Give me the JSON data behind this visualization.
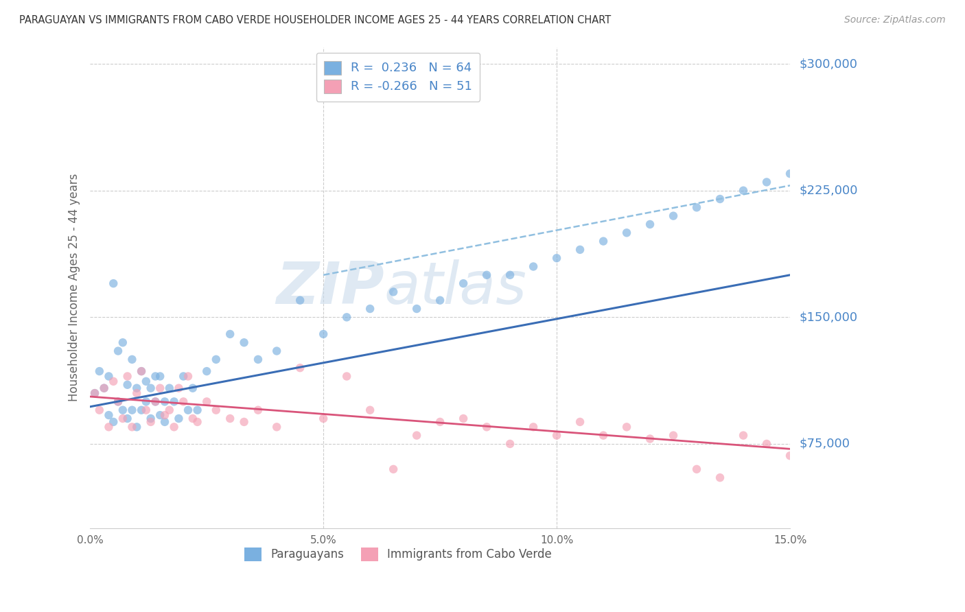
{
  "title": "PARAGUAYAN VS IMMIGRANTS FROM CABO VERDE HOUSEHOLDER INCOME AGES 25 - 44 YEARS CORRELATION CHART",
  "source": "Source: ZipAtlas.com",
  "ylabel": "Householder Income Ages 25 - 44 years",
  "xlim": [
    0.0,
    0.15
  ],
  "ylim": [
    25000,
    310000
  ],
  "yticks": [
    75000,
    150000,
    225000,
    300000
  ],
  "xticks": [
    0.0,
    0.05,
    0.1,
    0.15
  ],
  "xtick_labels": [
    "0.0%",
    "5.0%",
    "10.0%",
    "15.0%"
  ],
  "blue_color": "#7ab0e0",
  "pink_color": "#f4a0b5",
  "blue_line_color": "#3a6db5",
  "pink_line_color": "#d9547a",
  "dashed_line_color": "#90bfe0",
  "watermark_zip": "ZIP",
  "watermark_atlas": "atlas",
  "legend_r1": "R =  0.236",
  "legend_n1": "N = 64",
  "legend_r2": "R = -0.266",
  "legend_n2": "N = 51",
  "blue_label": "Paraguayans",
  "pink_label": "Immigrants from Cabo Verde",
  "blue_scatter_x": [
    0.001,
    0.002,
    0.003,
    0.004,
    0.004,
    0.005,
    0.005,
    0.006,
    0.006,
    0.007,
    0.007,
    0.008,
    0.008,
    0.009,
    0.009,
    0.01,
    0.01,
    0.011,
    0.011,
    0.012,
    0.012,
    0.013,
    0.013,
    0.014,
    0.014,
    0.015,
    0.015,
    0.016,
    0.016,
    0.017,
    0.018,
    0.019,
    0.02,
    0.021,
    0.022,
    0.023,
    0.025,
    0.027,
    0.03,
    0.033,
    0.036,
    0.04,
    0.045,
    0.05,
    0.055,
    0.06,
    0.065,
    0.07,
    0.075,
    0.08,
    0.085,
    0.09,
    0.095,
    0.1,
    0.105,
    0.11,
    0.115,
    0.12,
    0.125,
    0.13,
    0.135,
    0.14,
    0.145,
    0.15
  ],
  "blue_scatter_y": [
    105000,
    118000,
    108000,
    92000,
    115000,
    88000,
    170000,
    100000,
    130000,
    95000,
    135000,
    110000,
    90000,
    125000,
    95000,
    108000,
    85000,
    118000,
    95000,
    112000,
    100000,
    90000,
    108000,
    115000,
    100000,
    92000,
    115000,
    100000,
    88000,
    108000,
    100000,
    90000,
    115000,
    95000,
    108000,
    95000,
    118000,
    125000,
    140000,
    135000,
    125000,
    130000,
    160000,
    140000,
    150000,
    155000,
    165000,
    155000,
    160000,
    170000,
    175000,
    175000,
    180000,
    185000,
    190000,
    195000,
    200000,
    205000,
    210000,
    215000,
    220000,
    225000,
    230000,
    235000
  ],
  "pink_scatter_x": [
    0.001,
    0.002,
    0.003,
    0.004,
    0.005,
    0.006,
    0.007,
    0.008,
    0.009,
    0.01,
    0.011,
    0.012,
    0.013,
    0.014,
    0.015,
    0.016,
    0.017,
    0.018,
    0.019,
    0.02,
    0.021,
    0.022,
    0.023,
    0.025,
    0.027,
    0.03,
    0.033,
    0.036,
    0.04,
    0.045,
    0.05,
    0.055,
    0.06,
    0.065,
    0.07,
    0.075,
    0.08,
    0.085,
    0.09,
    0.095,
    0.1,
    0.105,
    0.11,
    0.115,
    0.12,
    0.125,
    0.13,
    0.135,
    0.14,
    0.145,
    0.15
  ],
  "pink_scatter_y": [
    105000,
    95000,
    108000,
    85000,
    112000,
    100000,
    90000,
    115000,
    85000,
    105000,
    118000,
    95000,
    88000,
    100000,
    108000,
    92000,
    95000,
    85000,
    108000,
    100000,
    115000,
    90000,
    88000,
    100000,
    95000,
    90000,
    88000,
    95000,
    85000,
    120000,
    90000,
    115000,
    95000,
    60000,
    80000,
    88000,
    90000,
    85000,
    75000,
    85000,
    80000,
    88000,
    80000,
    85000,
    78000,
    80000,
    60000,
    55000,
    80000,
    75000,
    68000
  ],
  "blue_trend_x0": 0.0,
  "blue_trend_y0": 97000,
  "blue_trend_x1": 0.15,
  "blue_trend_y1": 175000,
  "pink_trend_x0": 0.0,
  "pink_trend_y0": 103000,
  "pink_trend_x1": 0.15,
  "pink_trend_y1": 72000,
  "dashed_trend_x0": 0.05,
  "dashed_trend_y0": 175000,
  "dashed_trend_x1": 0.15,
  "dashed_trend_y1": 228000,
  "grid_color": "#cccccc",
  "background_color": "#ffffff",
  "title_color": "#333333",
  "ytick_color": "#4a86c8",
  "source_color": "#999999"
}
